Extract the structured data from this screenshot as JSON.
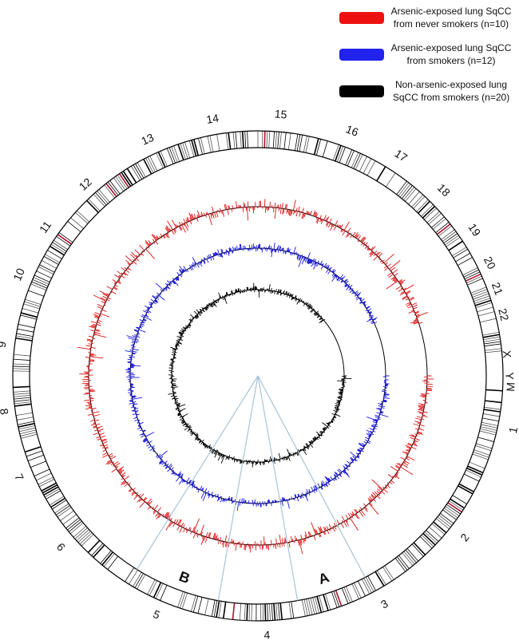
{
  "legend": [
    {
      "line1": "Arsenic-exposed lung SqCC",
      "line2": "from never smokers (n=10)",
      "color": "#ee1111"
    },
    {
      "line1": "Arsenic-exposed lung SqCC",
      "line2": "from smokers (n=12)",
      "color": "#2222ee"
    },
    {
      "line1": "Non-arsenic-exposed lung",
      "line2": "SqCC from smokers (n=20)",
      "color": "#000000"
    }
  ],
  "chromosomes": [
    "1",
    "2",
    "3",
    "4",
    "5",
    "6",
    "7",
    "8",
    "9",
    "10",
    "11",
    "12",
    "13",
    "14",
    "15",
    "16",
    "17",
    "18",
    "19",
    "20",
    "21",
    "22",
    "X",
    "Y",
    "M"
  ],
  "region_labels": [
    "A",
    "B"
  ],
  "tracks": [
    {
      "name": "never-smokers-track",
      "color": "#e01010"
    },
    {
      "name": "smokers-track",
      "color": "#1515e0"
    },
    {
      "name": "non-arsenic-track",
      "color": "#000000"
    }
  ]
}
